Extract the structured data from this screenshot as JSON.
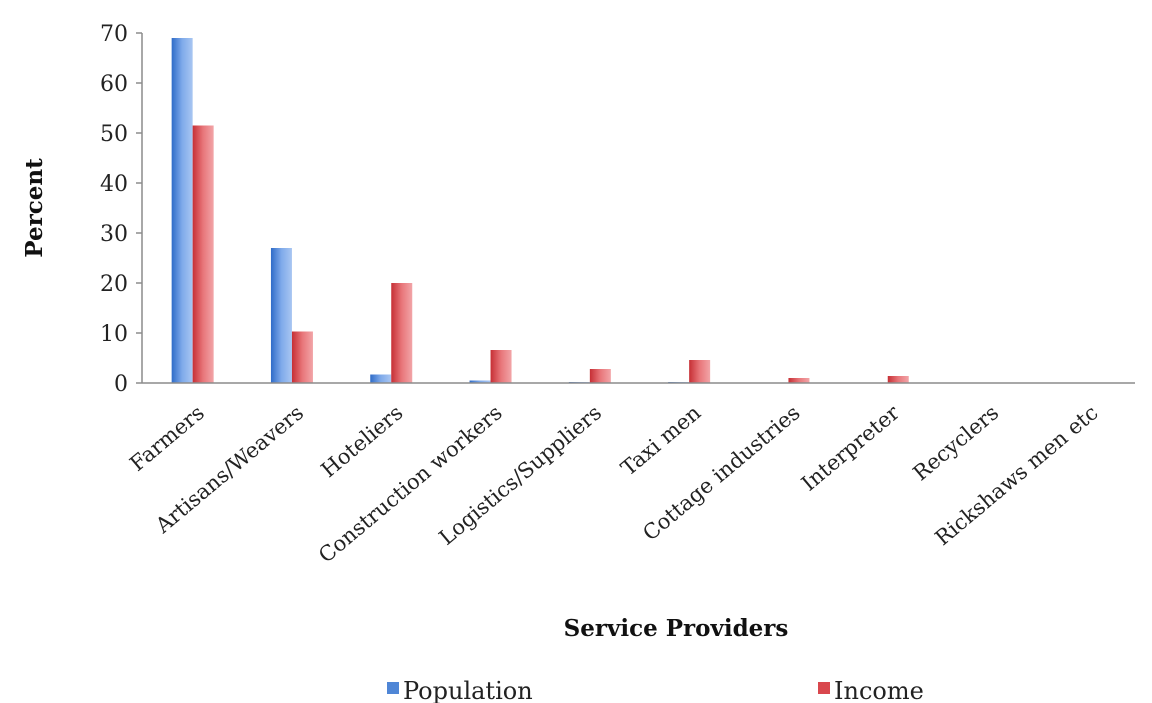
{
  "chart_data": {
    "type": "bar",
    "xlabel": "Service Providers",
    "ylabel": "Percent",
    "ylim": [
      0,
      70
    ],
    "yticks": [
      0,
      10,
      20,
      30,
      40,
      50,
      60,
      70
    ],
    "grid": false,
    "legend_position": "bottom",
    "categories": [
      "Farmers",
      "Artisans/Weavers",
      "Hoteliers",
      "Construction workers",
      "Logistics/Suppliers",
      "Taxi men",
      "Cottage industries",
      "Interpreter",
      "Recyclers",
      "Rickshaws men etc"
    ],
    "series": [
      {
        "name": "Population",
        "color": "#4f86d6",
        "values": [
          69,
          27,
          1.7,
          0.5,
          0.2,
          0.2,
          0.1,
          0.1,
          0,
          0
        ]
      },
      {
        "name": "Income",
        "color": "#d9474d",
        "values": [
          51.5,
          10.3,
          20,
          6.6,
          2.8,
          4.6,
          1,
          1.4,
          0,
          0
        ]
      }
    ]
  }
}
